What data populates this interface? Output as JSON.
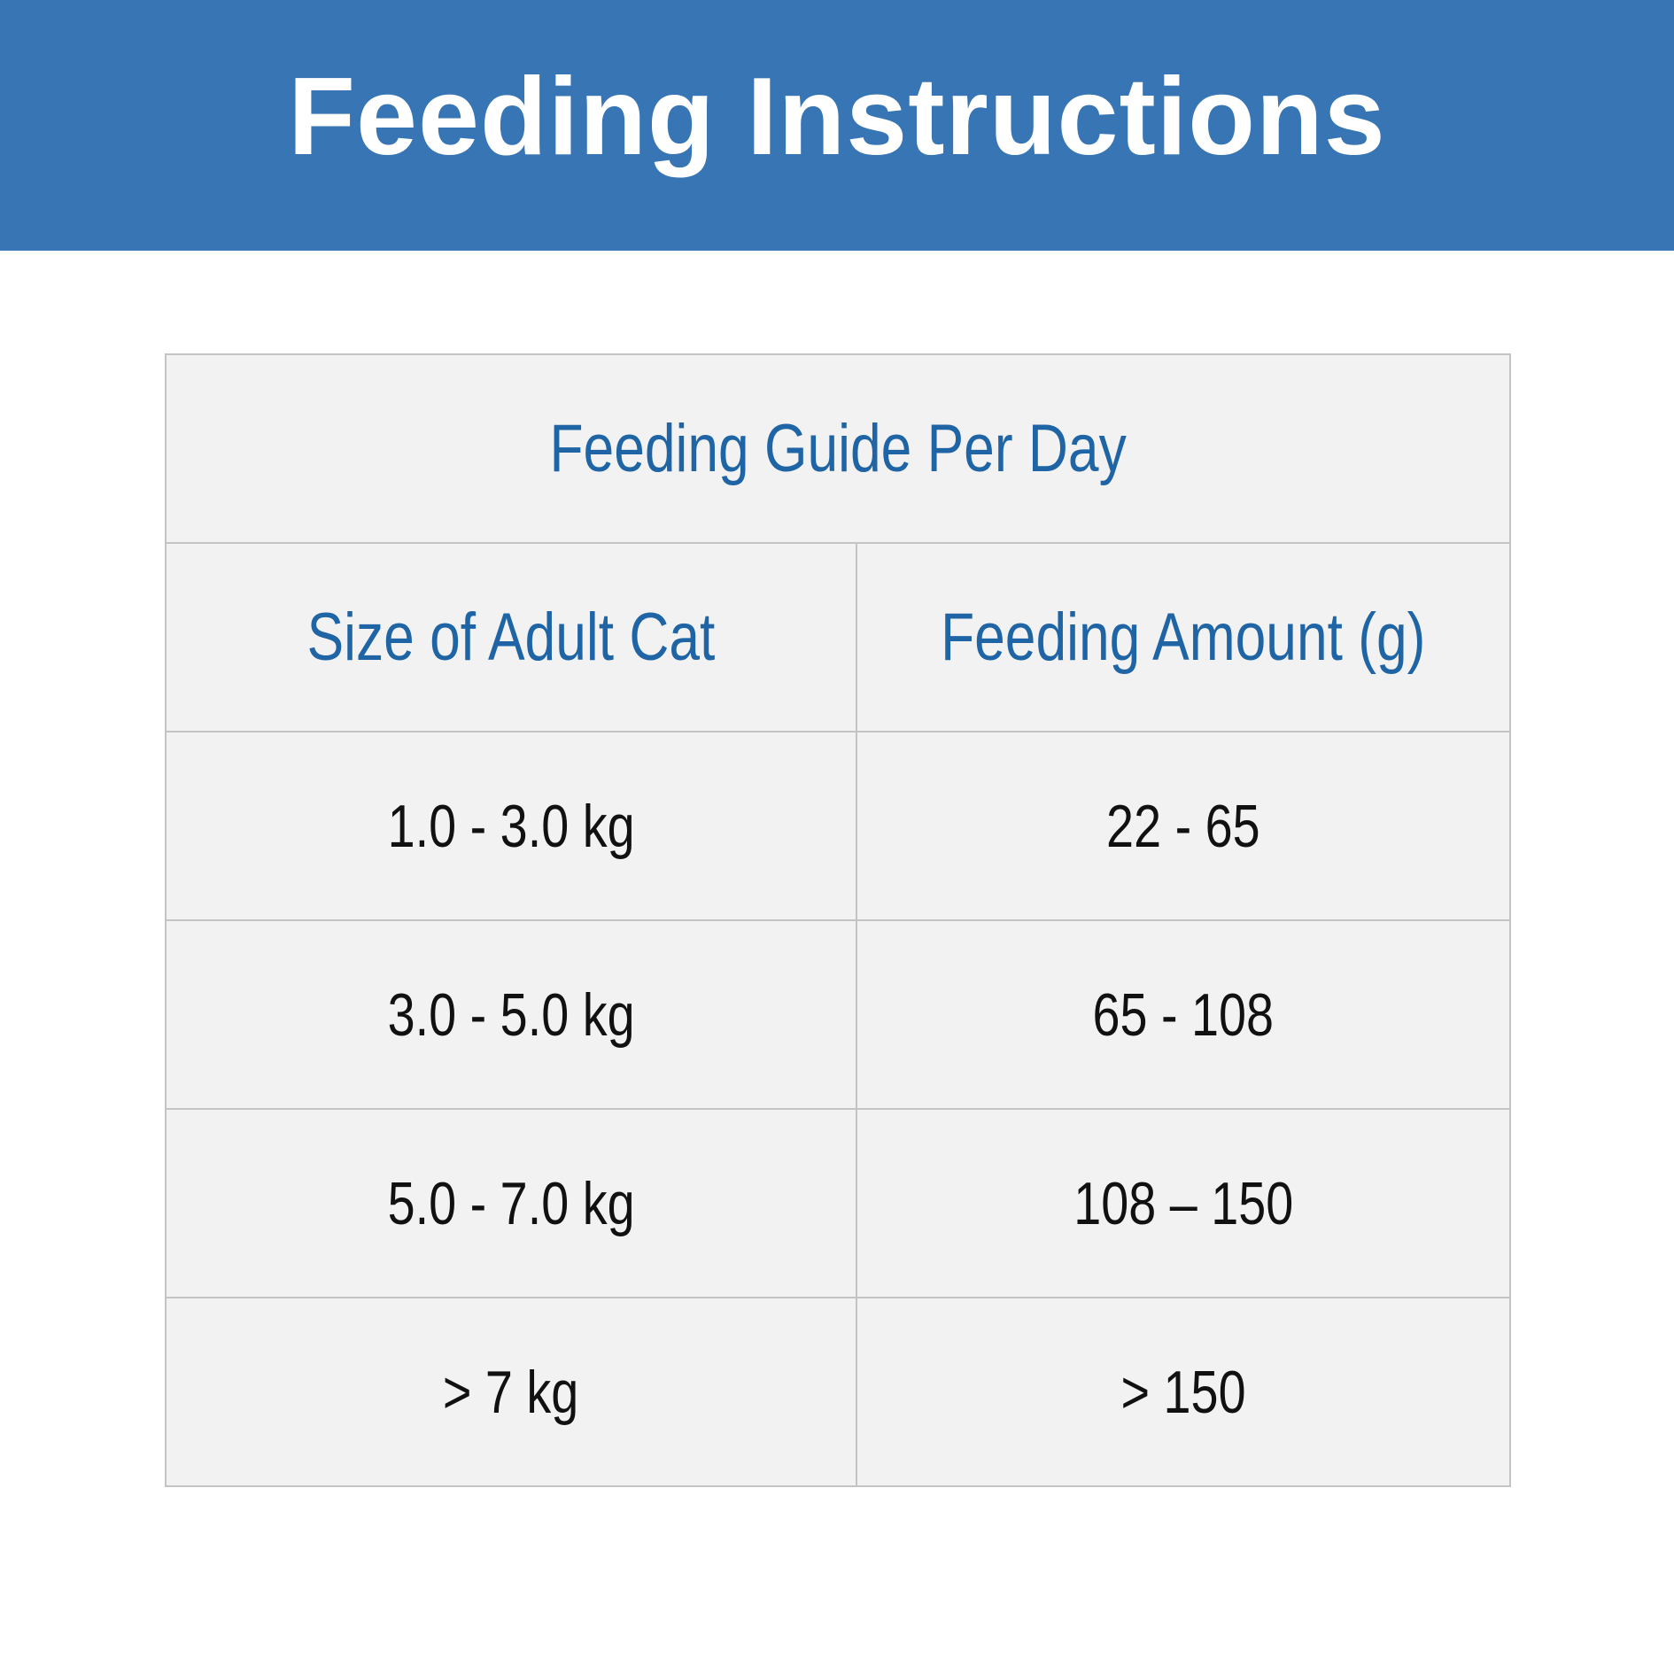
{
  "banner": {
    "title": "Feeding Instructions",
    "background_color": "#3775b4"
  },
  "table": {
    "caption": "Feeding Guide Per Day",
    "headers": [
      "Size of Adult Cat",
      "Feeding Amount (g)"
    ],
    "rows": [
      [
        "1.0 - 3.0 kg",
        "22 - 65"
      ],
      [
        "3.0 - 5.0 kg",
        "65 - 108"
      ],
      [
        "5.0 - 7.0 kg",
        "108 – 150"
      ],
      [
        "> 7 kg",
        "> 150"
      ]
    ],
    "header_text_color": "#1f64a5",
    "cell_background_color": "#f2f2f2",
    "border_color": "#c4c4c4"
  }
}
